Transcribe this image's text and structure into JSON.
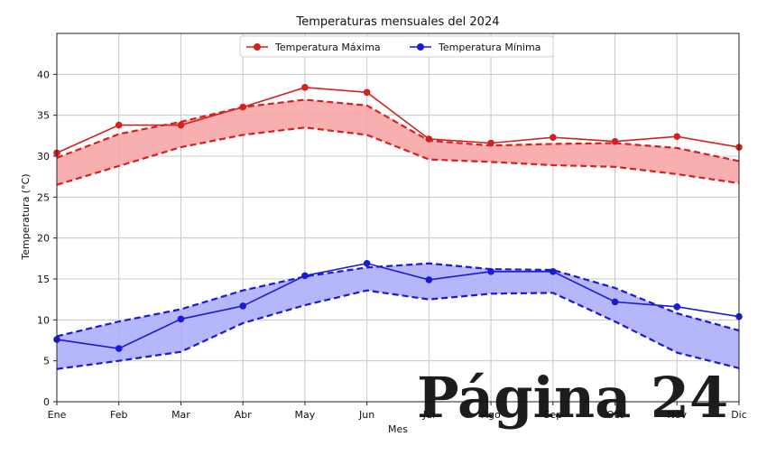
{
  "chart_data": {
    "type": "line",
    "title": "Temperaturas mensuales del 2024",
    "xlabel": "Mes",
    "ylabel": "Temperatura (°C)",
    "categories": [
      "Ene",
      "Feb",
      "Mar",
      "Abr",
      "May",
      "Jun",
      "Jul",
      "Ago",
      "Sep",
      "Oct",
      "Nov",
      "Dic"
    ],
    "ylim": [
      0,
      45
    ],
    "yticks": [
      0,
      5,
      10,
      15,
      20,
      25,
      30,
      35,
      40
    ],
    "grid": true,
    "legend_position": "top-center",
    "series": [
      {
        "name": "Temperatura Máxima",
        "color": "#d62020",
        "marker": "circle",
        "values": [
          30.4,
          33.8,
          33.8,
          36.0,
          38.4,
          37.8,
          32.1,
          31.6,
          32.3,
          31.8,
          32.4,
          31.1
        ],
        "band_upper": [
          29.8,
          32.7,
          34.2,
          36.0,
          36.9,
          36.2,
          31.9,
          31.3,
          31.5,
          31.6,
          31.0,
          29.4
        ],
        "band_lower": [
          26.5,
          28.8,
          31.1,
          32.6,
          33.5,
          32.6,
          29.6,
          29.3,
          28.9,
          28.7,
          27.8,
          26.7
        ],
        "band_color": "#f7a6a6"
      },
      {
        "name": "Temperatura Mínima",
        "color": "#1a1ad6",
        "marker": "circle",
        "values": [
          7.6,
          6.5,
          10.1,
          11.7,
          15.4,
          16.9,
          14.9,
          15.9,
          15.9,
          12.2,
          11.6,
          10.4
        ],
        "band_upper": [
          8.0,
          9.8,
          11.3,
          13.6,
          15.3,
          16.4,
          16.9,
          16.2,
          16.1,
          13.9,
          10.8,
          8.7
        ],
        "band_lower": [
          4.0,
          5.0,
          6.1,
          9.6,
          11.8,
          13.6,
          12.5,
          13.2,
          13.3,
          9.8,
          6.0,
          4.1
        ],
        "band_color": "#aeaefa"
      }
    ]
  },
  "watermark": {
    "text": "Página 24",
    "color": "#6fa3cf"
  }
}
